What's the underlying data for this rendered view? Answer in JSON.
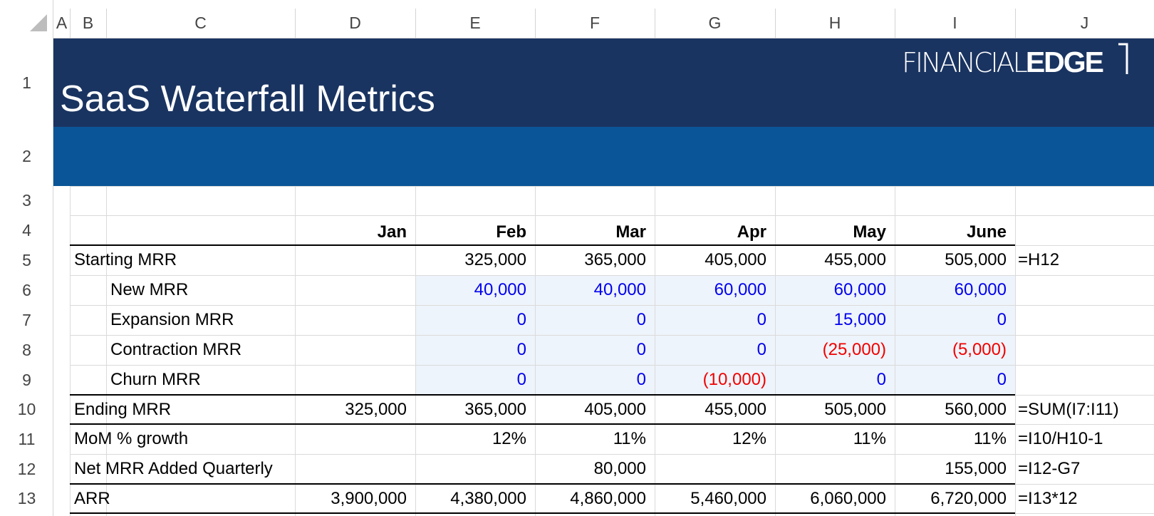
{
  "column_headers": [
    "A",
    "B",
    "C",
    "D",
    "E",
    "F",
    "G",
    "H",
    "I",
    "J"
  ],
  "row_headers": [
    "1",
    "2",
    "3",
    "4",
    "5",
    "6",
    "7",
    "8",
    "9",
    "10",
    "11",
    "12",
    "13"
  ],
  "header": {
    "title": "SaaS Waterfall Metrics",
    "logo": {
      "light": "FINANCIAL",
      "bold": "EDGE"
    }
  },
  "table": {
    "months": [
      "Jan",
      "Feb",
      "Mar",
      "Apr",
      "May",
      "June"
    ],
    "rows": [
      {
        "label": "Starting MRR",
        "cells": [
          null,
          "325,000",
          "365,000",
          "405,000",
          "455,000",
          "505,000"
        ],
        "formula": "=H12"
      },
      {
        "label": "New MRR",
        "cells": [
          null,
          "40,000",
          "40,000",
          "60,000",
          "60,000",
          "60,000"
        ],
        "formula": null
      },
      {
        "label": "Expansion MRR",
        "cells": [
          null,
          "0",
          "0",
          "0",
          "15,000",
          "0"
        ],
        "formula": null
      },
      {
        "label": "Contraction MRR",
        "cells": [
          null,
          "0",
          "0",
          "0",
          "(25,000)",
          "(5,000)"
        ],
        "formula": null
      },
      {
        "label": "Churn MRR",
        "cells": [
          null,
          "0",
          "0",
          "(10,000)",
          "0",
          "0"
        ],
        "formula": null
      },
      {
        "label": "Ending MRR",
        "cells": [
          "325,000",
          "365,000",
          "405,000",
          "455,000",
          "505,000",
          "560,000"
        ],
        "formula": "=SUM(I7:I11)"
      },
      {
        "label": "MoM % growth",
        "cells": [
          null,
          "12%",
          "11%",
          "12%",
          "11%",
          "11%"
        ],
        "formula": "=I10/H10-1"
      },
      {
        "label": "Net MRR Added Quarterly",
        "cells": [
          null,
          null,
          "80,000",
          null,
          null,
          "155,000"
        ],
        "formula": "=I12-G7"
      },
      {
        "label": "ARR",
        "cells": [
          "3,900,000",
          "4,380,000",
          "4,860,000",
          "5,460,000",
          "6,060,000",
          "6,720,000"
        ],
        "formula": "=I13*12"
      }
    ]
  }
}
